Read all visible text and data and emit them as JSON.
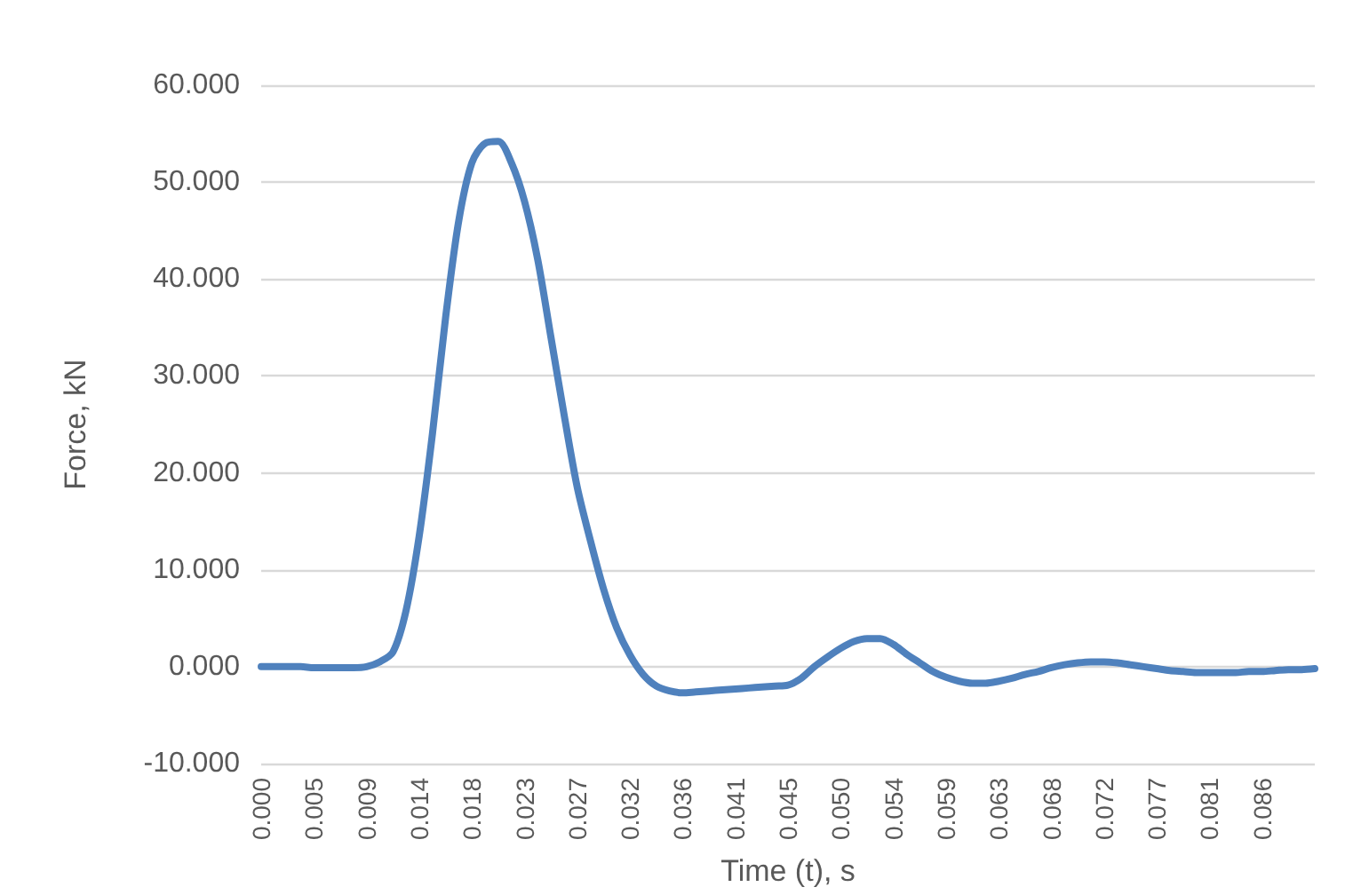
{
  "chart_data": {
    "type": "line",
    "xlabel": "Time (t), s",
    "ylabel": "Force, kN",
    "categories": [
      "0.000",
      null,
      null,
      null,
      "0.005",
      null,
      null,
      null,
      "0.009",
      null,
      null,
      null,
      "0.014",
      null,
      null,
      null,
      "0.018",
      null,
      null,
      null,
      "0.023",
      null,
      null,
      null,
      "0.027",
      null,
      null,
      null,
      "0.032",
      null,
      null,
      null,
      "0.036",
      null,
      null,
      null,
      "0.041",
      null,
      null,
      null,
      "0.045",
      null,
      null,
      null,
      "0.050",
      null,
      null,
      null,
      "0.054",
      null,
      null,
      null,
      "0.059",
      null,
      null,
      null,
      "0.063",
      null,
      null,
      null,
      "0.068",
      null,
      null,
      null,
      "0.072",
      null,
      null,
      null,
      "0.077",
      null,
      null,
      null,
      "0.081",
      null,
      null,
      null,
      "0.086",
      null,
      null,
      null,
      null
    ],
    "series": [
      {
        "color": "#4f81bd",
        "values": [
          0,
          0,
          0,
          0,
          -0.1,
          -0.1,
          -0.1,
          -0.1,
          0,
          0.5,
          1.5,
          5.8,
          13.5,
          24,
          36,
          46,
          52,
          54,
          54.2,
          52,
          48,
          42,
          34,
          26,
          18.5,
          13,
          8,
          4,
          1.2,
          -0.8,
          -2,
          -2.5,
          -2.7,
          -2.6,
          -2.5,
          -2.4,
          -2.3,
          -2.2,
          -2.1,
          -2,
          -1.9,
          -1.2,
          0,
          1,
          1.9,
          2.6,
          2.9,
          2.9,
          2.3,
          1.3,
          0.4,
          -0.5,
          -1.1,
          -1.5,
          -1.7,
          -1.7,
          -1.5,
          -1.2,
          -0.8,
          -0.5,
          -0.1,
          0.2,
          0.4,
          0.5,
          0.5,
          0.4,
          0.2,
          0,
          -0.2,
          -0.4,
          -0.5,
          -0.6,
          -0.6,
          -0.6,
          -0.6,
          -0.5,
          -0.5,
          -0.4,
          -0.3,
          -0.3,
          -0.2
        ]
      }
    ],
    "ylim": [
      -10,
      60
    ],
    "yticks": [
      {
        "value": -10,
        "label": "-10.000"
      },
      {
        "value": 0,
        "label": "0.000"
      },
      {
        "value": 10,
        "label": "10.000"
      },
      {
        "value": 20,
        "label": "20.000"
      },
      {
        "value": 30,
        "label": "30.000"
      },
      {
        "value": 40,
        "label": "40.000"
      },
      {
        "value": 50,
        "label": "50.000"
      },
      {
        "value": 60,
        "label": "60.000"
      }
    ],
    "grid": "y",
    "marker": "none",
    "line_style": "solid"
  }
}
